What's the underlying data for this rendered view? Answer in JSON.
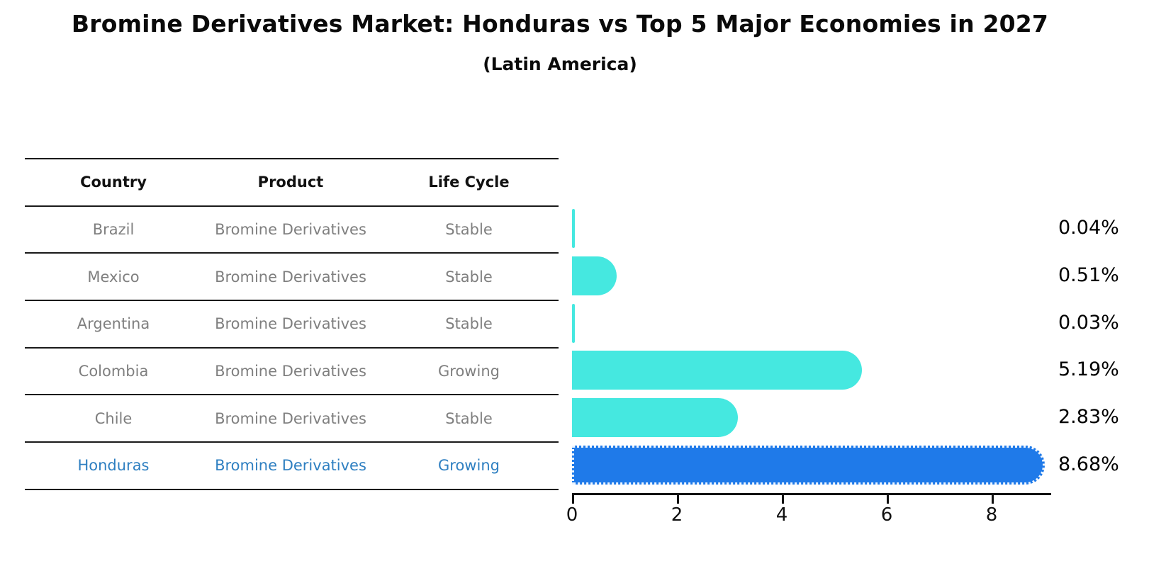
{
  "page": {
    "title": "Bromine Derivatives Market: Honduras vs Top 5 Major Economies in 2027",
    "subtitle": "(Latin America)"
  },
  "table": {
    "headers": {
      "country": "Country",
      "product": "Product",
      "life_cycle": "Life Cycle"
    },
    "rows": [
      {
        "country": "Brazil",
        "product": "Bromine Derivatives",
        "life_cycle": "Stable",
        "highlight": false
      },
      {
        "country": "Mexico",
        "product": "Bromine Derivatives",
        "life_cycle": "Stable",
        "highlight": false
      },
      {
        "country": "Argentina",
        "product": "Bromine Derivatives",
        "life_cycle": "Stable",
        "highlight": false
      },
      {
        "country": "Colombia",
        "product": "Bromine Derivatives",
        "life_cycle": "Growing",
        "highlight": false
      },
      {
        "country": "Chile",
        "product": "Bromine Derivatives",
        "life_cycle": "Stable",
        "highlight": false
      },
      {
        "country": "Honduras",
        "product": "Bromine Derivatives",
        "life_cycle": "Growing",
        "highlight": true
      }
    ]
  },
  "chart_data": {
    "type": "bar",
    "orientation": "horizontal",
    "title": "Bromine Derivatives Market: Honduras vs Top 5 Major Economies in 2027",
    "subtitle": "(Latin America)",
    "categories": [
      "Brazil",
      "Mexico",
      "Argentina",
      "Colombia",
      "Chile",
      "Honduras"
    ],
    "values": [
      0.04,
      0.51,
      0.03,
      5.19,
      2.83,
      8.68
    ],
    "value_labels": [
      "0.04%",
      "0.51%",
      "0.03%",
      "5.19%",
      "2.83%",
      "8.68%"
    ],
    "highlight_index": 5,
    "xticks": [
      0,
      2,
      4,
      6,
      8
    ],
    "xtick_labels": [
      "0",
      "2",
      "4",
      "6",
      "8"
    ],
    "xlim": [
      0,
      9.14
    ],
    "grid": false,
    "legend": "none",
    "bar_color": "#45e8e0",
    "highlight_bar_color": "#1f7ae9"
  },
  "colors": {
    "bar_teal": "#45e8e0",
    "bar_blue": "#1f7ae9",
    "highlight_text": "#2e7fc1",
    "table_text": "#7f7f7f",
    "header_text": "#111111",
    "line": "#1a1a1a",
    "value_text": "#000000"
  }
}
